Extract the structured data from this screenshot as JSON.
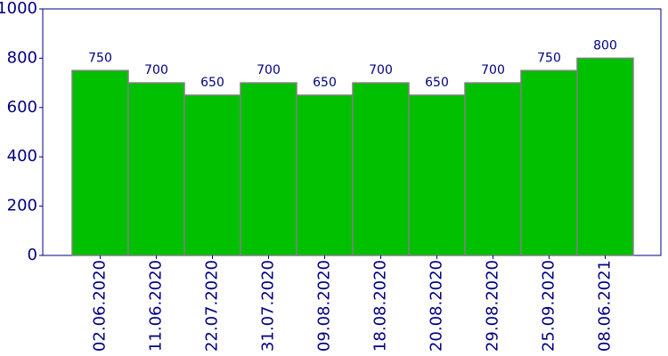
{
  "chart_data": {
    "type": "bar",
    "categories": [
      "02.06.2020",
      "11.06.2020",
      "22.07.2020",
      "31.07.2020",
      "09.08.2020",
      "18.08.2020",
      "20.08.2020",
      "29.08.2020",
      "25.09.2020",
      "08.06.2021"
    ],
    "values": [
      750,
      700,
      650,
      700,
      650,
      700,
      650,
      700,
      750,
      800
    ],
    "color": "#00c000",
    "ylim": [
      0,
      1000
    ],
    "yticks": [
      0,
      200,
      400,
      600,
      800,
      1000
    ]
  }
}
